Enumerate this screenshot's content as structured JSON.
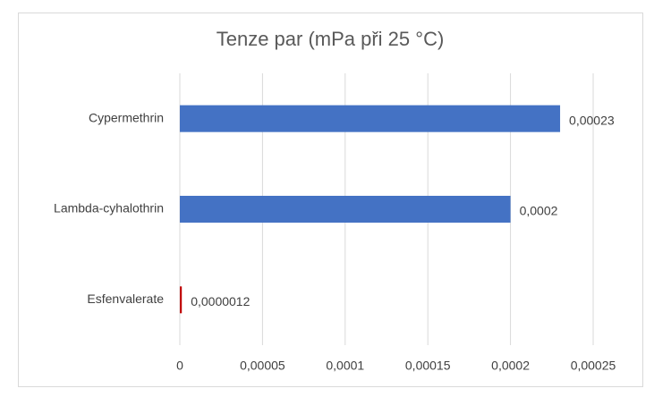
{
  "chart_data": {
    "type": "bar",
    "orientation": "horizontal",
    "title": "Tenze par (mPa při 25 °C)",
    "categories": [
      "Cypermethrin",
      "Lambda-cyhalothrin",
      "Esfenvalerate"
    ],
    "values": [
      0.00023,
      0.0002,
      1.2e-06
    ],
    "value_labels": [
      "0,00023",
      "0,0002",
      "0,0000012"
    ],
    "colors": [
      "#4472c4",
      "#4472c4",
      "#c00000"
    ],
    "xlim": [
      0,
      0.00025
    ],
    "xticks": [
      0,
      {
        "value": 5e-05,
        "label": "0,00005"
      },
      {
        "value": 0.0001,
        "label": "0,0001"
      },
      {
        "value": 0.00015,
        "label": "0,00015"
      },
      {
        "value": 0.0002,
        "label": "0,0002"
      },
      {
        "value": 0.00025,
        "label": "0,00025"
      }
    ],
    "grid": true
  }
}
